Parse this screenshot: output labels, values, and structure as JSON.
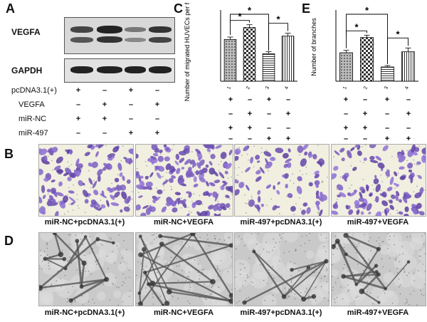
{
  "panels": {
    "A": "A",
    "B": "B",
    "C": "C",
    "D": "D",
    "E": "E"
  },
  "western_blot": {
    "labels": [
      "VEGFA",
      "GAPDH"
    ],
    "treatments": [
      {
        "name": "pcDNA3.1(+)",
        "signs": [
          "+",
          "–",
          "+",
          "–"
        ]
      },
      {
        "name": "VEGFA",
        "signs": [
          "–",
          "+",
          "–",
          "+"
        ]
      },
      {
        "name": "miR-NC",
        "signs": [
          "+",
          "+",
          "–",
          "–"
        ]
      },
      {
        "name": "miR-497",
        "signs": [
          "–",
          "–",
          "+",
          "+"
        ]
      }
    ]
  },
  "chart_c_signs": [
    [
      "+",
      "–",
      "+",
      "–"
    ],
    [
      "–",
      "+",
      "–",
      "+"
    ],
    [
      "+",
      "+",
      "–",
      "–"
    ],
    [
      "–",
      "–",
      "+",
      "+"
    ]
  ],
  "chart_e_signs": [
    [
      "+",
      "–",
      "+",
      "–"
    ],
    [
      "–",
      "+",
      "–",
      "+"
    ],
    [
      "+",
      "+",
      "–",
      "–"
    ],
    [
      "–",
      "–",
      "+",
      "+"
    ]
  ],
  "captions_b": [
    "miR-NC+pcDNA3.1(+)",
    "miR-NC+VEGFA",
    "miR-497+pcDNA3.1(+)",
    "miR-497+VEGFA"
  ],
  "captions_d": [
    "miR-NC+pcDNA3.1(+)",
    "miR-NC+VEGFA",
    "miR-497+pcDNA3.1(+)",
    "miR-497+VEGFA"
  ],
  "chart_data": [
    {
      "type": "bar",
      "panel": "C",
      "categories": [
        "1",
        "2",
        "3",
        "4"
      ],
      "values": [
        88,
        113,
        58,
        95
      ],
      "errors": [
        5,
        6,
        4,
        6
      ],
      "ylabel": "Number of migrated HUVECs per field",
      "ylim": [
        0,
        150
      ],
      "significance": [
        "*",
        "*",
        "*"
      ]
    },
    {
      "type": "bar",
      "panel": "E",
      "categories": [
        "1",
        "2",
        "3",
        "4"
      ],
      "values": [
        60,
        92,
        30,
        62
      ],
      "errors": [
        5,
        5,
        3,
        8
      ],
      "ylabel": "Number of branches",
      "ylim": [
        0,
        150
      ],
      "significance": [
        "*",
        "*",
        "*"
      ]
    }
  ]
}
